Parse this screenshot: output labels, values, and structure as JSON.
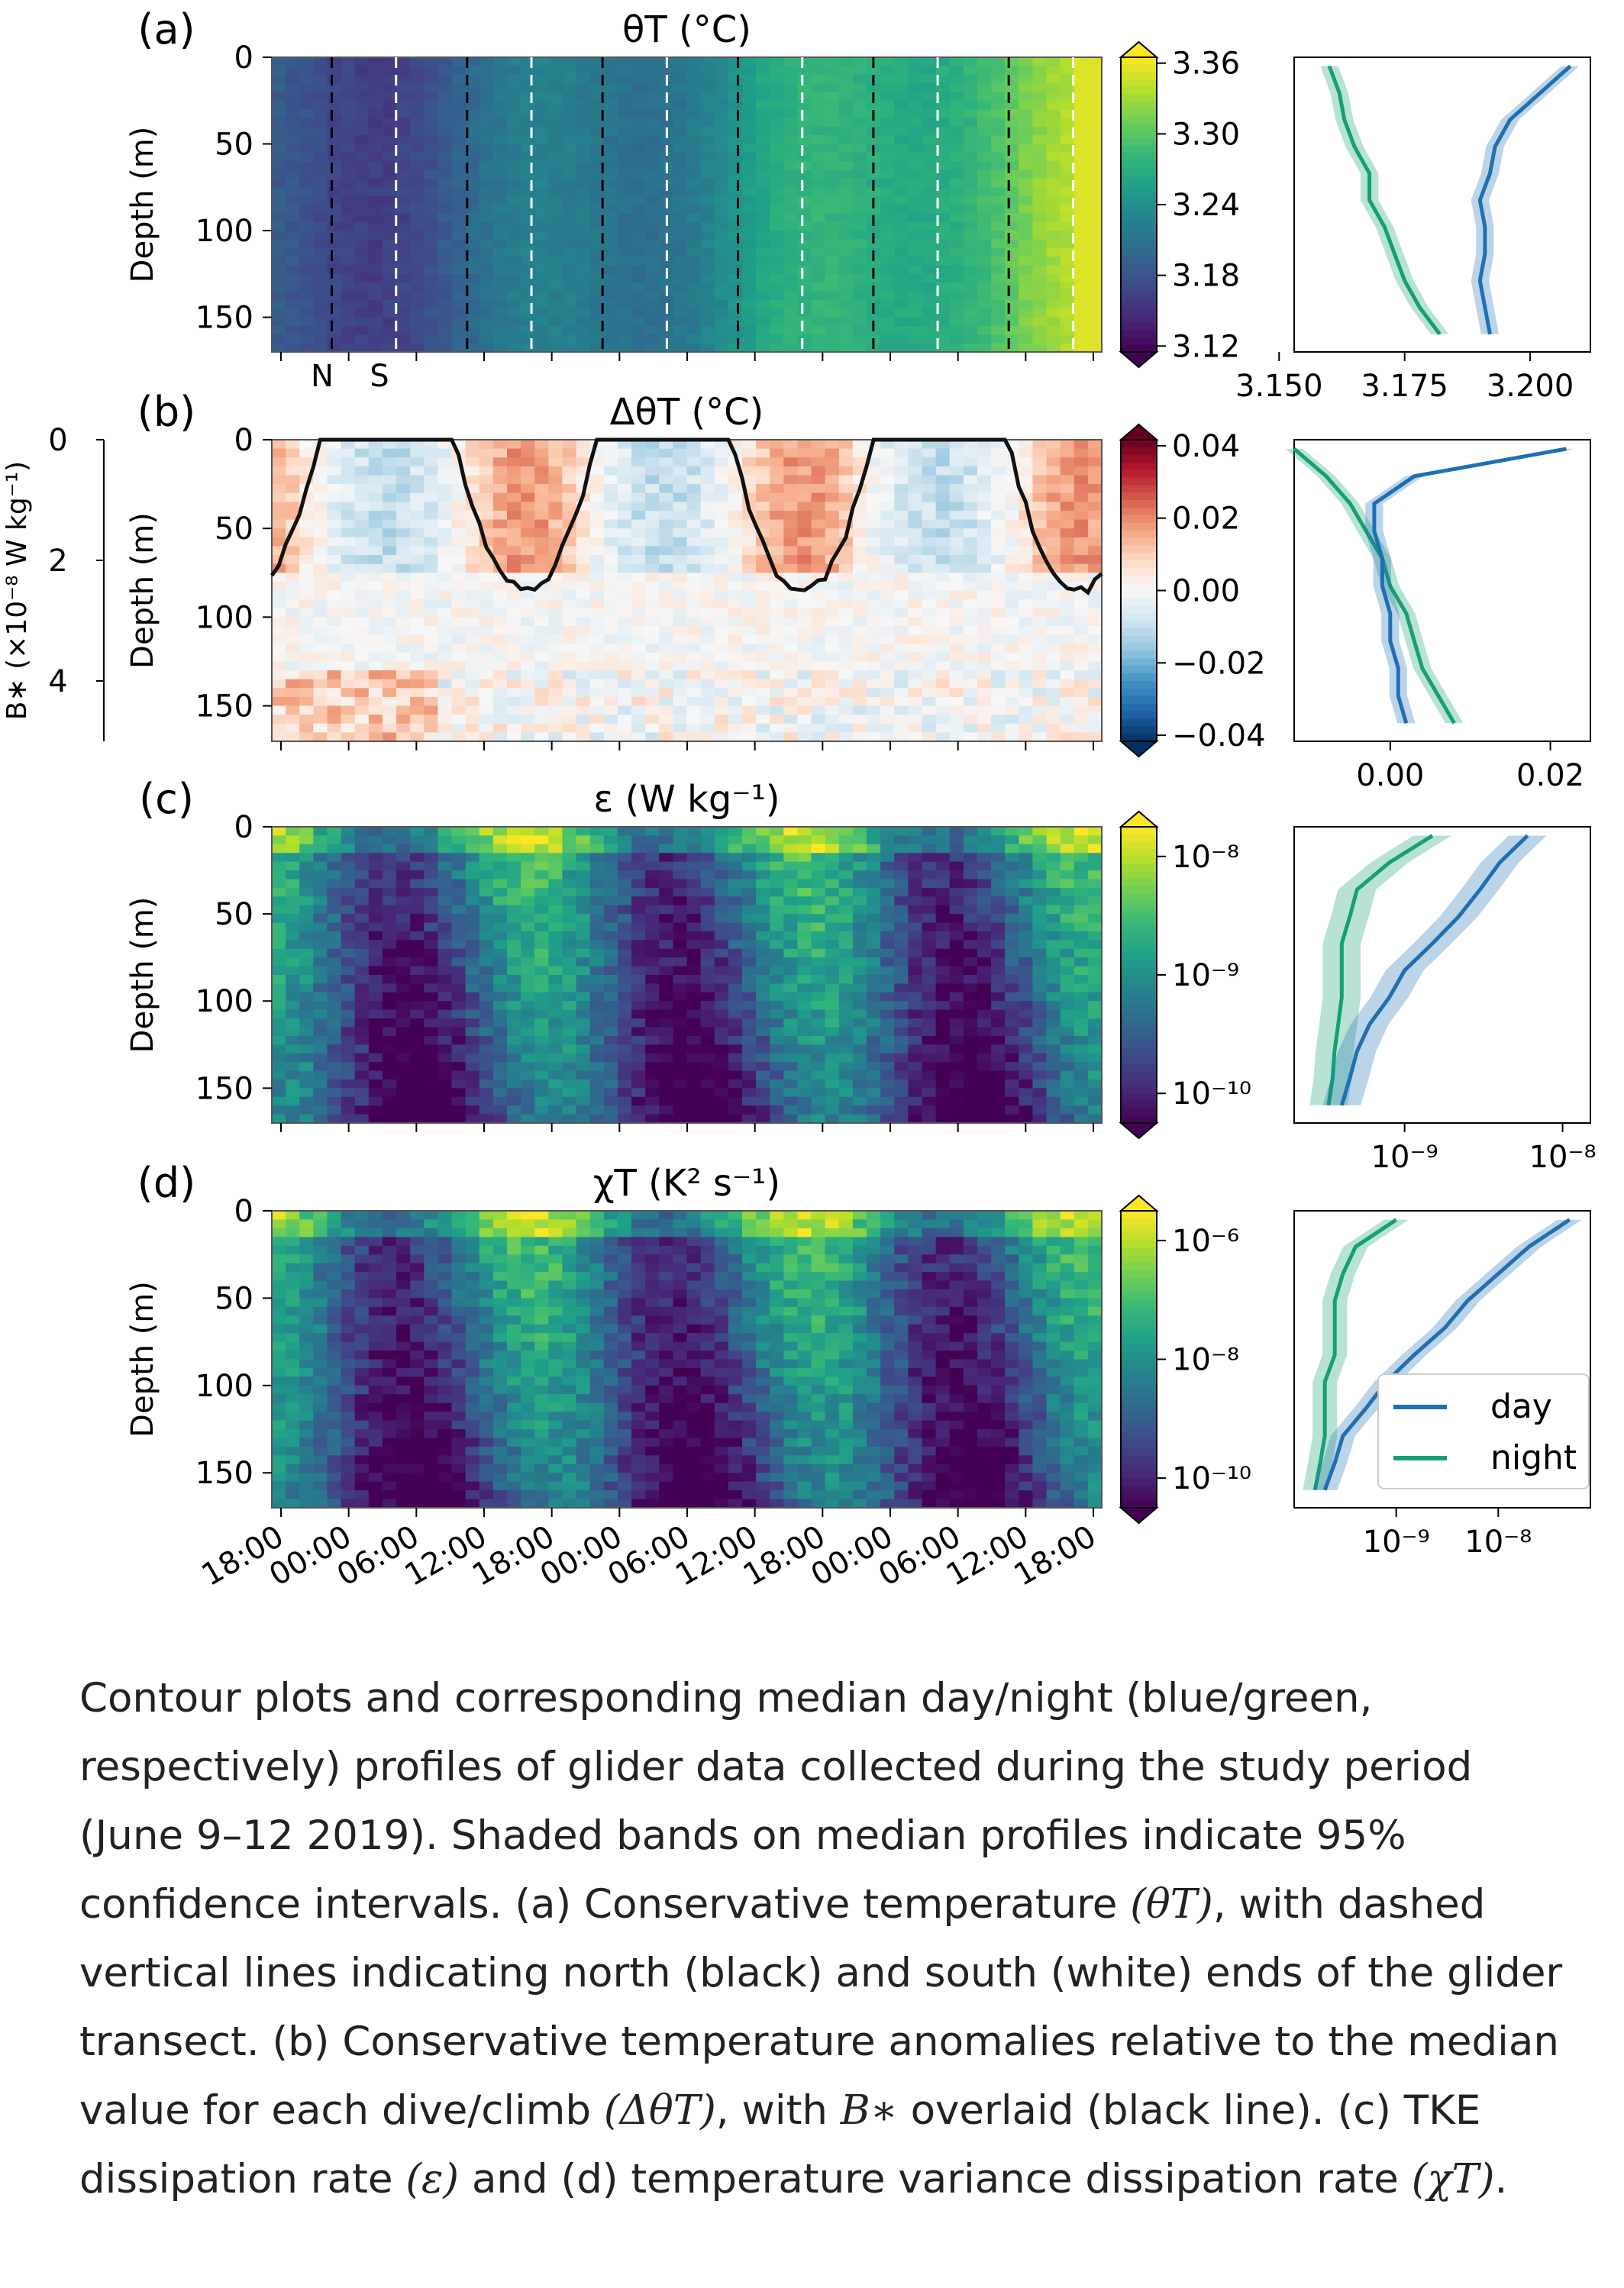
{
  "chart_data": [
    {
      "type": "heatmap",
      "panel_label": "(a)",
      "title": "θT (°C)",
      "ylabel": "Depth (m)",
      "y_ticks": [
        0,
        50,
        100,
        150
      ],
      "ylim": [
        170,
        0
      ],
      "x_ticks": [
        "18:00",
        "00:00",
        "06:00",
        "12:00",
        "18:00",
        "00:00",
        "06:00",
        "12:00",
        "18:00",
        "00:00",
        "06:00",
        "12:00",
        "18:00"
      ],
      "colormap": "viridis",
      "color_ticks": [
        "3.36",
        "3.30",
        "3.24",
        "3.18",
        "3.12"
      ],
      "color_range": [
        3.12,
        3.36
      ],
      "annotations": [
        "N",
        "S"
      ],
      "north_end_lines_x": [
        0.75,
        2.75,
        4.75,
        6.75,
        8.75,
        10.75
      ],
      "south_end_lines_x": [
        1.7,
        3.7,
        5.7,
        7.7,
        9.7,
        11.7
      ],
      "profile": {
        "x_ticks": [
          "3.150",
          "3.175",
          "3.200"
        ],
        "xlim": [
          3.153,
          3.212
        ],
        "depth": [
          5,
          20,
          35,
          50,
          65,
          80,
          95,
          110,
          125,
          140,
          155
        ],
        "day": [
          3.208,
          3.202,
          3.196,
          3.193,
          3.192,
          3.19,
          3.191,
          3.191,
          3.19,
          3.191,
          3.192
        ],
        "night": [
          3.16,
          3.162,
          3.163,
          3.165,
          3.168,
          3.168,
          3.171,
          3.173,
          3.175,
          3.178,
          3.182
        ]
      }
    },
    {
      "type": "heatmap",
      "panel_label": "(b)",
      "title": "ΔθT (°C)",
      "ylabel": "Depth (m)",
      "y_ticks": [
        0,
        50,
        100,
        150
      ],
      "secondary_ylabel": "B∗ (×10⁻⁸ W kg⁻¹)",
      "secondary_y_ticks": [
        0,
        2,
        4
      ],
      "colormap": "RdBu_r",
      "color_ticks": [
        "0.04",
        "0.02",
        "0.00",
        "−0.02",
        "−0.04"
      ],
      "color_range": [
        -0.04,
        0.04
      ],
      "overlay_line": "B∗",
      "profile": {
        "x_ticks": [
          "0.00",
          "0.02"
        ],
        "xlim": [
          -0.012,
          0.025
        ],
        "depth": [
          5,
          20,
          35,
          50,
          65,
          80,
          95,
          110,
          125,
          140,
          155
        ],
        "day": [
          0.022,
          0.003,
          -0.002,
          -0.002,
          -0.001,
          -0.001,
          0.0,
          0.0,
          0.001,
          0.001,
          0.002
        ],
        "night": [
          -0.012,
          -0.008,
          -0.005,
          -0.003,
          -0.001,
          0.0,
          0.002,
          0.003,
          0.004,
          0.006,
          0.008
        ]
      }
    },
    {
      "type": "heatmap",
      "panel_label": "(c)",
      "title": "ε (W kg⁻¹)",
      "ylabel": "Depth (m)",
      "y_ticks": [
        0,
        50,
        100,
        150
      ],
      "colormap": "viridis",
      "color_scale": "log",
      "color_ticks": [
        "10⁻⁸",
        "10⁻⁹",
        "10⁻¹⁰"
      ],
      "profile": {
        "x_ticks": [
          "10⁻⁹",
          "10⁻⁸"
        ],
        "xscale": "log",
        "xlim": [
          2e-10,
          1.5e-08
        ],
        "depth": [
          5,
          20,
          35,
          50,
          65,
          80,
          95,
          110,
          125,
          140,
          155
        ],
        "day": [
          6e-09,
          4e-09,
          3e-09,
          2.2e-09,
          1.5e-09,
          1e-09,
          8e-10,
          6e-10,
          5e-10,
          4.5e-10,
          4e-10
        ],
        "night": [
          1.5e-09,
          8e-10,
          5e-10,
          4.5e-10,
          4e-10,
          4e-10,
          4e-10,
          3.8e-10,
          3.6e-10,
          3.5e-10,
          3.3e-10
        ]
      }
    },
    {
      "type": "heatmap",
      "panel_label": "(d)",
      "title": "χT (K² s⁻¹)",
      "ylabel": "Depth (m)",
      "y_ticks": [
        0,
        50,
        100,
        150
      ],
      "colormap": "viridis",
      "color_scale": "log",
      "color_ticks": [
        "10⁻⁶",
        "10⁻⁸",
        "10⁻¹⁰"
      ],
      "legend": {
        "position": "lower-right",
        "entries": [
          "day",
          "night"
        ]
      },
      "profile": {
        "x_ticks": [
          "10⁻⁹",
          "10⁻⁸"
        ],
        "xscale": "log",
        "xlim": [
          1e-10,
          8e-08
        ],
        "depth": [
          5,
          20,
          35,
          50,
          65,
          80,
          95,
          110,
          125,
          140,
          155
        ],
        "day": [
          5e-08,
          2e-08,
          1e-08,
          5e-09,
          3e-09,
          1.5e-09,
          8e-10,
          5e-10,
          3e-10,
          2.5e-10,
          2e-10
        ],
        "night": [
          1e-09,
          4e-10,
          3e-10,
          2.5e-10,
          2.5e-10,
          2.5e-10,
          2e-10,
          2e-10,
          2e-10,
          1.8e-10,
          1.6e-10
        ]
      }
    }
  ],
  "series_colors": {
    "day": "#1f6fb2",
    "night": "#15a074"
  },
  "legend_labels": {
    "day": "day",
    "night": "night"
  },
  "caption": {
    "text1": "Contour plots and corresponding median day/night (blue/green, respectively) profiles of glider data collected during the study period (June 9–12 2019). Shaded bands on median profiles indicate 95% confidence intervals. (a) Conservative temperature ",
    "math1": "(θT)",
    "text2": ", with dashed vertical lines indicating north (black) and south (white) ends of the glider transect. (b) Conservative temperature anomalies relative to the median value for each dive/climb ",
    "math2": "(ΔθT)",
    "text3": ", with ",
    "math3": "B∗",
    "text4": " overlaid (black line). (c) TKE dissipation rate ",
    "math4": "(ε)",
    "text5": " and (d) temperature variance dissipation rate ",
    "math5": "(χT)",
    "text6": "."
  }
}
